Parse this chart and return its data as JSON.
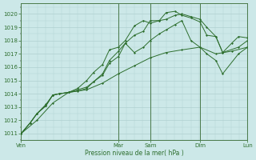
{
  "xlabel": "Pression niveau de la mer( hPa )",
  "bg_color": "#cce8e8",
  "grid_color": "#b0d0d0",
  "line_color": "#2d6e2d",
  "vline_color": "#4a7a4a",
  "ylim": [
    1010.5,
    1020.8
  ],
  "yticks": [
    1011,
    1012,
    1013,
    1014,
    1015,
    1016,
    1017,
    1018,
    1019,
    1020
  ],
  "xtick_labels": [
    "Ven",
    "Mar",
    "Sam",
    "Dim",
    "Lun"
  ],
  "xtick_positions": [
    0.0,
    0.43,
    0.57,
    0.79,
    1.0
  ],
  "vline_positions": [
    0.0,
    0.43,
    0.57,
    0.79,
    1.0
  ],
  "series": [
    {
      "x": [
        0.0,
        0.04,
        0.07,
        0.11,
        0.14,
        0.17,
        0.21,
        0.25,
        0.29,
        0.32,
        0.36,
        0.39,
        0.43,
        0.46,
        0.5,
        0.54,
        0.57,
        0.61,
        0.64,
        0.68,
        0.71,
        0.75,
        0.79,
        0.82,
        0.86,
        0.89,
        0.93,
        0.96,
        1.0
      ],
      "y": [
        1011.0,
        1011.8,
        1012.5,
        1013.1,
        1013.9,
        1014.0,
        1014.1,
        1014.4,
        1015.0,
        1015.6,
        1016.2,
        1017.3,
        1017.5,
        1018.0,
        1019.1,
        1019.5,
        1019.3,
        1019.5,
        1020.1,
        1020.2,
        1019.9,
        1019.7,
        1019.4,
        1018.4,
        1018.3,
        1017.1,
        1017.8,
        1018.3,
        1018.2
      ]
    },
    {
      "x": [
        0.0,
        0.04,
        0.07,
        0.11,
        0.14,
        0.17,
        0.21,
        0.25,
        0.29,
        0.32,
        0.36,
        0.39,
        0.43,
        0.46,
        0.5,
        0.54,
        0.57,
        0.61,
        0.64,
        0.68,
        0.71,
        0.75,
        0.79,
        0.82,
        0.86,
        0.89,
        0.96,
        1.0
      ],
      "y": [
        1011.0,
        1011.8,
        1012.5,
        1013.1,
        1013.9,
        1014.0,
        1014.1,
        1014.3,
        1014.5,
        1014.9,
        1015.5,
        1016.5,
        1017.2,
        1017.8,
        1018.4,
        1018.7,
        1019.5,
        1019.5,
        1019.6,
        1019.9,
        1020.0,
        1019.8,
        1019.6,
        1019.0,
        1018.3,
        1017.1,
        1017.5,
        1018.0
      ]
    },
    {
      "x": [
        0.0,
        0.04,
        0.07,
        0.11,
        0.14,
        0.17,
        0.21,
        0.25,
        0.29,
        0.32,
        0.36,
        0.39,
        0.43,
        0.46,
        0.5,
        0.54,
        0.57,
        0.61,
        0.64,
        0.68,
        0.71,
        0.75,
        0.79,
        0.82,
        0.86,
        0.89,
        0.96,
        1.0
      ],
      "y": [
        1011.0,
        1011.8,
        1012.5,
        1013.2,
        1013.9,
        1014.0,
        1014.1,
        1014.2,
        1014.4,
        1014.9,
        1015.4,
        1016.3,
        1016.8,
        1017.8,
        1017.1,
        1017.5,
        1018.0,
        1018.5,
        1018.8,
        1019.2,
        1019.5,
        1018.0,
        1017.5,
        1017.0,
        1016.5,
        1015.5,
        1017.0,
        1017.5
      ]
    },
    {
      "x": [
        0.0,
        0.07,
        0.14,
        0.21,
        0.29,
        0.36,
        0.43,
        0.5,
        0.57,
        0.64,
        0.71,
        0.79,
        0.86,
        0.93,
        1.0
      ],
      "y": [
        1011.0,
        1012.0,
        1013.3,
        1014.1,
        1014.3,
        1014.8,
        1015.5,
        1016.1,
        1016.7,
        1017.1,
        1017.3,
        1017.5,
        1017.0,
        1017.2,
        1017.5
      ]
    }
  ]
}
